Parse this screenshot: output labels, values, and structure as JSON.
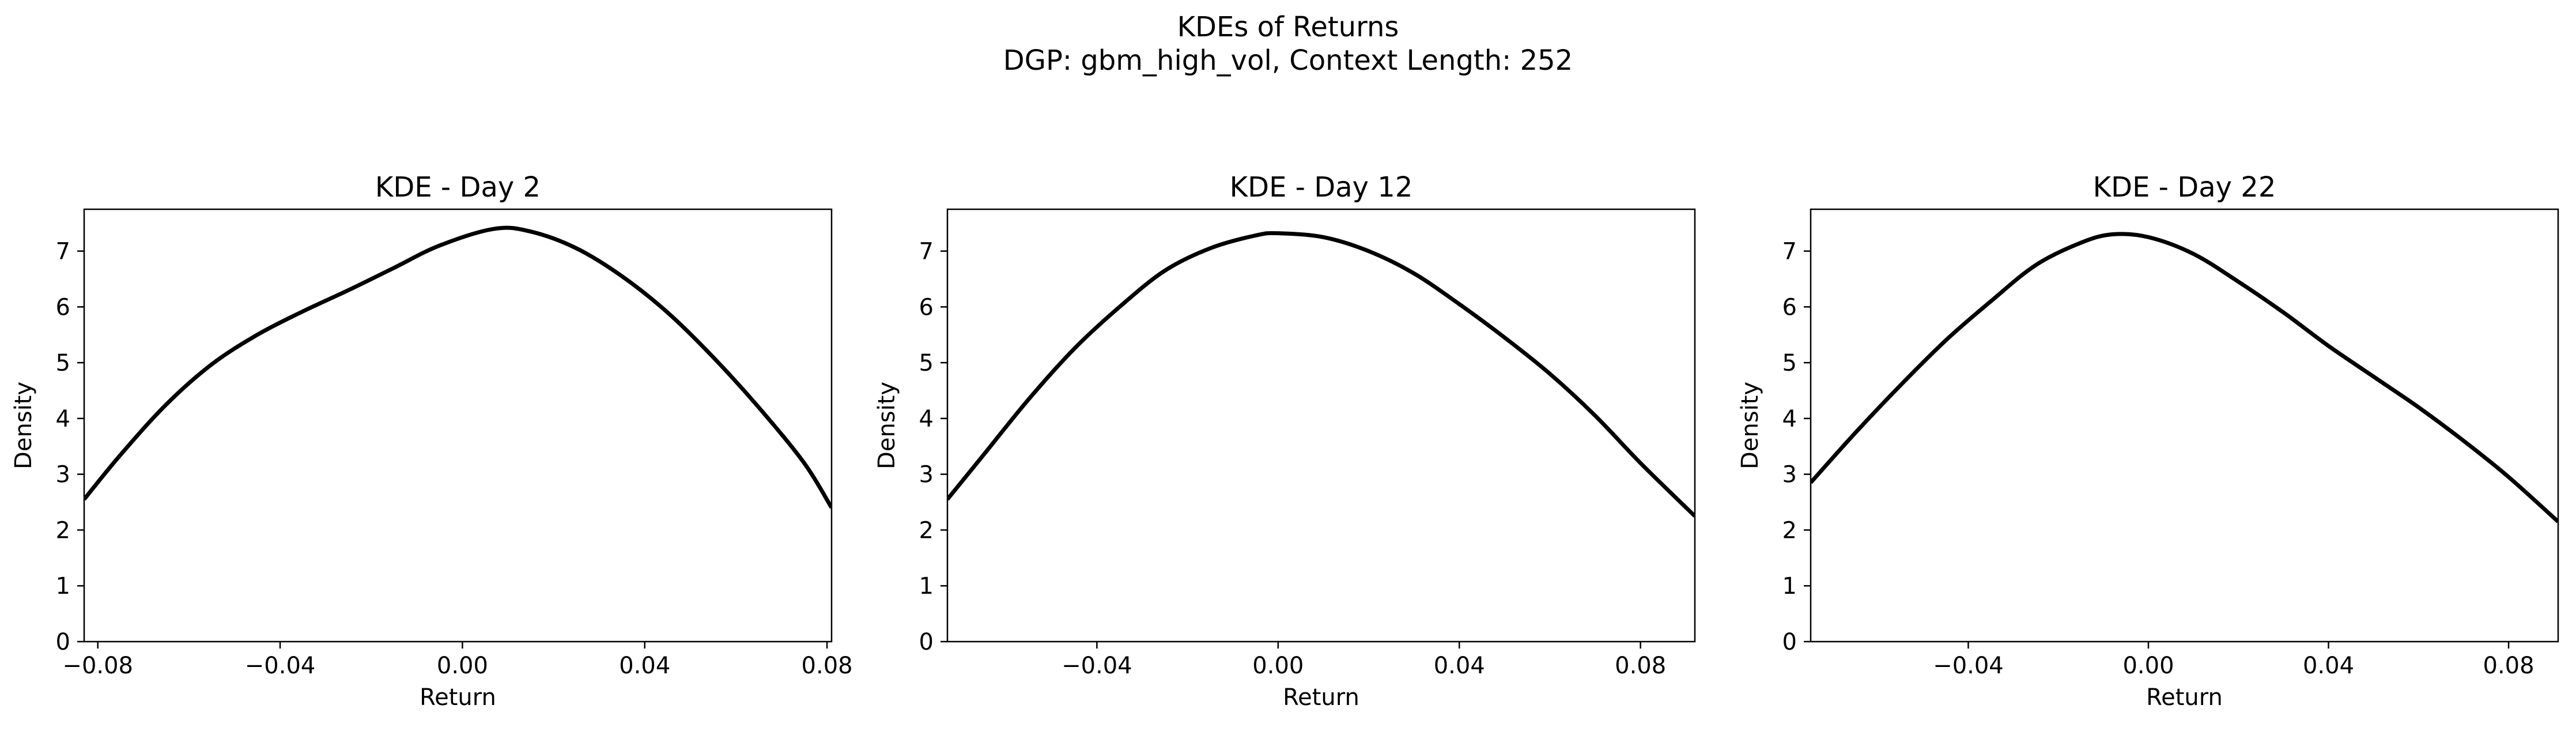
{
  "figure": {
    "title_line1": "KDEs of Returns",
    "title_line2": "DGP: gbm_high_vol, Context Length: 252"
  },
  "chart_data": [
    {
      "type": "line",
      "title": "KDE - Day 2",
      "xlabel": "Return",
      "ylabel": "Density",
      "xlim": [
        -0.083,
        0.081
      ],
      "ylim": [
        0,
        7.75
      ],
      "xticks": [
        -0.08,
        -0.04,
        0.0,
        0.04,
        0.08
      ],
      "xtick_labels": [
        "−0.08",
        "−0.04",
        "0.00",
        "0.04",
        "0.08"
      ],
      "yticks": [
        0,
        1,
        2,
        3,
        4,
        5,
        6,
        7
      ],
      "ytick_labels": [
        "0",
        "1",
        "2",
        "3",
        "4",
        "5",
        "6",
        "7"
      ],
      "line_color": "#000000",
      "grid": false,
      "series": [
        {
          "x": [
            -0.083,
            -0.075,
            -0.065,
            -0.055,
            -0.045,
            -0.035,
            -0.025,
            -0.015,
            -0.005,
            0.007,
            0.015,
            0.025,
            0.035,
            0.045,
            0.055,
            0.065,
            0.075,
            0.081
          ],
          "values": [
            2.55,
            3.35,
            4.25,
            4.97,
            5.5,
            5.92,
            6.3,
            6.7,
            7.1,
            7.4,
            7.35,
            7.05,
            6.55,
            5.9,
            5.1,
            4.2,
            3.2,
            2.4
          ]
        }
      ]
    },
    {
      "type": "line",
      "title": "KDE - Day 12",
      "xlabel": "Return",
      "ylabel": "Density",
      "xlim": [
        -0.073,
        0.092
      ],
      "ylim": [
        0,
        7.75
      ],
      "xticks": [
        -0.04,
        0.0,
        0.04,
        0.08
      ],
      "xtick_labels": [
        "−0.04",
        "0.00",
        "0.04",
        "0.08"
      ],
      "yticks": [
        0,
        1,
        2,
        3,
        4,
        5,
        6,
        7
      ],
      "ytick_labels": [
        "0",
        "1",
        "2",
        "3",
        "4",
        "5",
        "6",
        "7"
      ],
      "line_color": "#000000",
      "grid": false,
      "series": [
        {
          "x": [
            -0.073,
            -0.065,
            -0.055,
            -0.045,
            -0.035,
            -0.025,
            -0.015,
            -0.005,
            0.0,
            0.01,
            0.02,
            0.03,
            0.04,
            0.05,
            0.06,
            0.07,
            0.08,
            0.092
          ],
          "values": [
            2.55,
            3.35,
            4.35,
            5.25,
            6.0,
            6.65,
            7.05,
            7.28,
            7.32,
            7.25,
            7.0,
            6.6,
            6.05,
            5.45,
            4.8,
            4.05,
            3.2,
            2.25
          ]
        }
      ]
    },
    {
      "type": "line",
      "title": "KDE - Day 22",
      "xlabel": "Return",
      "ylabel": "Density",
      "xlim": [
        -0.075,
        0.091
      ],
      "ylim": [
        0,
        7.75
      ],
      "xticks": [
        -0.04,
        0.0,
        0.04,
        0.08
      ],
      "xtick_labels": [
        "−0.04",
        "0.00",
        "0.04",
        "0.08"
      ],
      "yticks": [
        0,
        1,
        2,
        3,
        4,
        5,
        6,
        7
      ],
      "ytick_labels": [
        "0",
        "1",
        "2",
        "3",
        "4",
        "5",
        "6",
        "7"
      ],
      "line_color": "#000000",
      "grid": false,
      "series": [
        {
          "x": [
            -0.075,
            -0.065,
            -0.055,
            -0.045,
            -0.035,
            -0.025,
            -0.015,
            -0.008,
            0.0,
            0.01,
            0.02,
            0.03,
            0.04,
            0.05,
            0.06,
            0.07,
            0.08,
            0.091
          ],
          "values": [
            2.85,
            3.75,
            4.6,
            5.4,
            6.1,
            6.75,
            7.15,
            7.3,
            7.25,
            6.95,
            6.45,
            5.9,
            5.3,
            4.75,
            4.2,
            3.6,
            2.95,
            2.15
          ]
        }
      ]
    }
  ]
}
